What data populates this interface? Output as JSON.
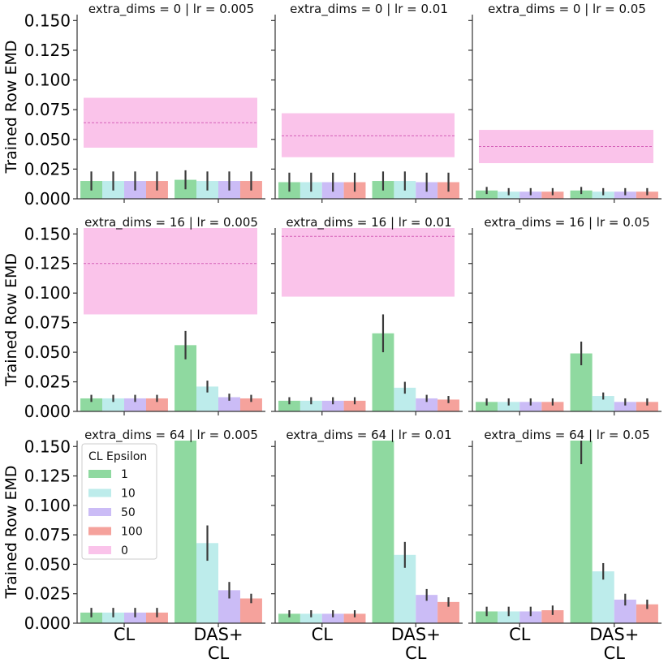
{
  "chart_data": {
    "type": "bar",
    "ylabel": "Trained Row EMD",
    "ylim": [
      0,
      0.155
    ],
    "yticks": [
      "0.000",
      "0.025",
      "0.050",
      "0.075",
      "0.100",
      "0.125",
      "0.150"
    ],
    "ytick_values": [
      0,
      0.025,
      0.05,
      0.075,
      0.1,
      0.125,
      0.15
    ],
    "categories": [
      "CL",
      "DAS+\nCL"
    ],
    "legend": {
      "title": "CL Epsilon",
      "placement": "upper-left of bottom-left panel",
      "entries": [
        "1",
        "10",
        "50",
        "100",
        "0"
      ]
    },
    "colors": {
      "1": "#8fd9a0",
      "10": "#bdeceb",
      "50": "#cbbcf6",
      "100": "#f5a29c",
      "0": "#fac3ea",
      "band_line": "#d45fb8",
      "error": "#3a3a3a",
      "axis": "#333333"
    },
    "panels": [
      {
        "title": "extra_dims = 0 | lr = 0.005",
        "band": {
          "center": 0.064,
          "low": 0.043,
          "high": 0.085
        },
        "series": [
          {
            "name": "1",
            "values": [
              0.015,
              0.016
            ],
            "err": [
              0.008,
              0.008
            ]
          },
          {
            "name": "10",
            "values": [
              0.015,
              0.015
            ],
            "err": [
              0.008,
              0.008
            ]
          },
          {
            "name": "50",
            "values": [
              0.015,
              0.015
            ],
            "err": [
              0.008,
              0.008
            ]
          },
          {
            "name": "100",
            "values": [
              0.015,
              0.015
            ],
            "err": [
              0.008,
              0.008
            ]
          }
        ]
      },
      {
        "title": "extra_dims = 0 | lr = 0.01",
        "band": {
          "center": 0.053,
          "low": 0.035,
          "high": 0.072
        },
        "series": [
          {
            "name": "1",
            "values": [
              0.014,
              0.015
            ],
            "err": [
              0.008,
              0.008
            ]
          },
          {
            "name": "10",
            "values": [
              0.014,
              0.015
            ],
            "err": [
              0.008,
              0.008
            ]
          },
          {
            "name": "50",
            "values": [
              0.014,
              0.014
            ],
            "err": [
              0.008,
              0.008
            ]
          },
          {
            "name": "100",
            "values": [
              0.014,
              0.014
            ],
            "err": [
              0.008,
              0.008
            ]
          }
        ]
      },
      {
        "title": "extra_dims = 0 | lr = 0.05",
        "band": {
          "center": 0.044,
          "low": 0.03,
          "high": 0.058
        },
        "series": [
          {
            "name": "1",
            "values": [
              0.007,
              0.007
            ],
            "err": [
              0.003,
              0.003
            ]
          },
          {
            "name": "10",
            "values": [
              0.006,
              0.006
            ],
            "err": [
              0.003,
              0.003
            ]
          },
          {
            "name": "50",
            "values": [
              0.006,
              0.006
            ],
            "err": [
              0.003,
              0.003
            ]
          },
          {
            "name": "100",
            "values": [
              0.006,
              0.006
            ],
            "err": [
              0.003,
              0.003
            ]
          }
        ]
      },
      {
        "title": "extra_dims = 16 | lr = 0.005",
        "band": {
          "center": 0.125,
          "low": 0.082,
          "high": 0.155
        },
        "series": [
          {
            "name": "1",
            "values": [
              0.011,
              0.056
            ],
            "err": [
              0.003,
              0.012
            ]
          },
          {
            "name": "10",
            "values": [
              0.011,
              0.021
            ],
            "err": [
              0.003,
              0.005
            ]
          },
          {
            "name": "50",
            "values": [
              0.011,
              0.012
            ],
            "err": [
              0.003,
              0.003
            ]
          },
          {
            "name": "100",
            "values": [
              0.011,
              0.011
            ],
            "err": [
              0.003,
              0.003
            ]
          }
        ]
      },
      {
        "title": "extra_dims = 16 | lr = 0.01",
        "band": {
          "center": 0.148,
          "low": 0.097,
          "high": 0.155
        },
        "series": [
          {
            "name": "1",
            "values": [
              0.009,
              0.066
            ],
            "err": [
              0.003,
              0.016
            ]
          },
          {
            "name": "10",
            "values": [
              0.009,
              0.02
            ],
            "err": [
              0.003,
              0.005
            ]
          },
          {
            "name": "50",
            "values": [
              0.009,
              0.011
            ],
            "err": [
              0.003,
              0.003
            ]
          },
          {
            "name": "100",
            "values": [
              0.009,
              0.01
            ],
            "err": [
              0.003,
              0.003
            ]
          }
        ]
      },
      {
        "title": "extra_dims = 16 | lr = 0.05",
        "band": null,
        "series": [
          {
            "name": "1",
            "values": [
              0.008,
              0.049
            ],
            "err": [
              0.003,
              0.01
            ]
          },
          {
            "name": "10",
            "values": [
              0.008,
              0.013
            ],
            "err": [
              0.003,
              0.003
            ]
          },
          {
            "name": "50",
            "values": [
              0.008,
              0.008
            ],
            "err": [
              0.003,
              0.003
            ]
          },
          {
            "name": "100",
            "values": [
              0.008,
              0.008
            ],
            "err": [
              0.003,
              0.003
            ]
          }
        ]
      },
      {
        "title": "extra_dims = 64 | lr = 0.005",
        "band": null,
        "series": [
          {
            "name": "1",
            "values": [
              0.009,
              0.155
            ],
            "err": [
              0.004,
              0.0
            ]
          },
          {
            "name": "10",
            "values": [
              0.009,
              0.068
            ],
            "err": [
              0.004,
              0.015
            ]
          },
          {
            "name": "50",
            "values": [
              0.009,
              0.028
            ],
            "err": [
              0.004,
              0.007
            ]
          },
          {
            "name": "100",
            "values": [
              0.009,
              0.021
            ],
            "err": [
              0.004,
              0.004
            ]
          }
        ]
      },
      {
        "title": "extra_dims = 64 | lr = 0.01",
        "band": null,
        "series": [
          {
            "name": "1",
            "values": [
              0.008,
              0.155
            ],
            "err": [
              0.003,
              0.0
            ]
          },
          {
            "name": "10",
            "values": [
              0.008,
              0.058
            ],
            "err": [
              0.003,
              0.011
            ]
          },
          {
            "name": "50",
            "values": [
              0.008,
              0.024
            ],
            "err": [
              0.003,
              0.005
            ]
          },
          {
            "name": "100",
            "values": [
              0.008,
              0.018
            ],
            "err": [
              0.003,
              0.004
            ]
          }
        ]
      },
      {
        "title": "extra_dims = 64 | lr = 0.05",
        "band": null,
        "series": [
          {
            "name": "1",
            "values": [
              0.01,
              0.155
            ],
            "err": [
              0.004,
              0.02
            ]
          },
          {
            "name": "10",
            "values": [
              0.01,
              0.044
            ],
            "err": [
              0.004,
              0.007
            ]
          },
          {
            "name": "50",
            "values": [
              0.01,
              0.02
            ],
            "err": [
              0.004,
              0.005
            ]
          },
          {
            "name": "100",
            "values": [
              0.011,
              0.016
            ],
            "err": [
              0.004,
              0.004
            ]
          }
        ]
      }
    ]
  }
}
